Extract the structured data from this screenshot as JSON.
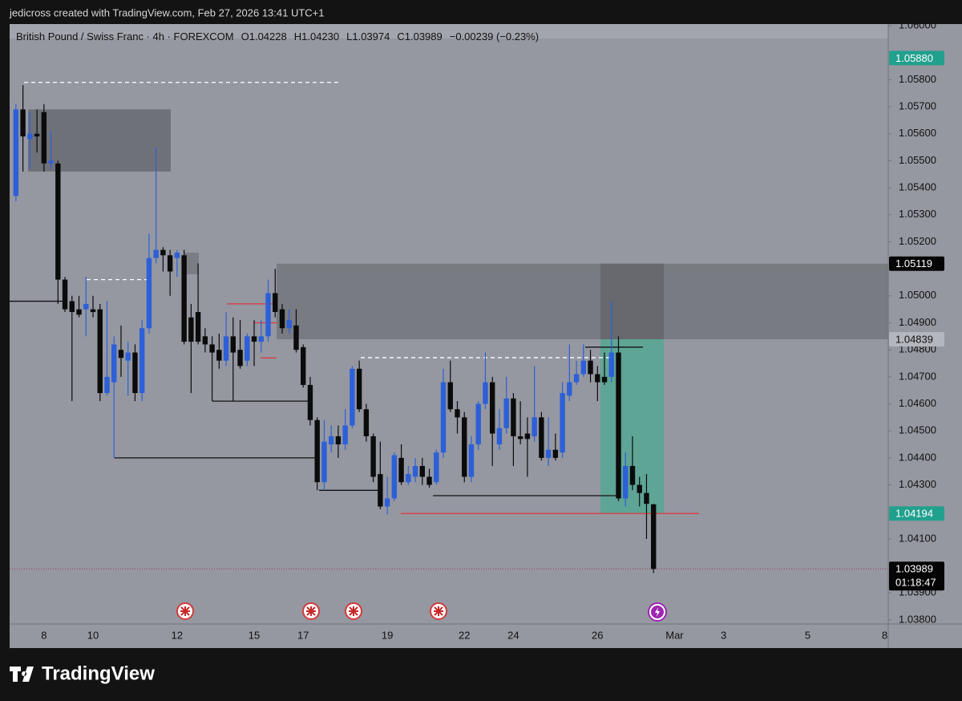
{
  "header": "jedicross created with TradingView.com, Feb 27, 2026 13:41 UTC+1",
  "footer_brand": "TradingView",
  "chart_data": {
    "type": "candlestick",
    "legend": [
      "British Pound / Swiss Franc · 4h · FOREXCOM",
      "O1.04228",
      "H1.04230",
      "L1.03974",
      "C1.03989",
      "−0.00239 (−0.23%)"
    ],
    "categories": [
      null,
      null,
      null,
      null,
      "8",
      null,
      null,
      null,
      null,
      null,
      null,
      "10",
      null,
      null,
      null,
      null,
      null,
      null,
      null,
      null,
      null,
      null,
      null,
      "12",
      null,
      null,
      null,
      null,
      null,
      null,
      null,
      null,
      null,
      null,
      "15",
      null,
      null,
      null,
      null,
      null,
      null,
      "17",
      null,
      null,
      null,
      null,
      null,
      null,
      null,
      null,
      null,
      null,
      null,
      "19",
      null,
      null,
      null,
      null,
      null,
      null,
      null,
      null,
      null,
      null,
      "22",
      null,
      null,
      null,
      null,
      null,
      null,
      "24",
      null,
      null,
      null,
      null,
      null,
      null,
      null,
      null,
      null,
      null,
      null,
      "26",
      null,
      null,
      null,
      null,
      null,
      null,
      null,
      null,
      null,
      null,
      "Mar",
      null,
      null,
      null,
      null,
      null,
      null,
      "3",
      null,
      null,
      null,
      null,
      null,
      null,
      null,
      null,
      null,
      null,
      null,
      "5",
      null,
      null,
      null,
      null,
      null,
      null,
      null,
      null,
      null,
      null,
      "8"
    ],
    "open": [
      1.0537,
      1.0569,
      1.0558,
      1.056,
      1.0568,
      1.0549,
      1.0549,
      1.0506,
      1.0498,
      1.0495,
      1.0495,
      1.0495,
      1.0495,
      1.0464,
      1.0468,
      1.048,
      1.0476,
      1.0479,
      1.0464,
      1.0488,
      1.0514,
      1.0517,
      1.0515,
      1.0514,
      1.0515,
      1.0492,
      1.0494,
      1.0485,
      1.0482,
      1.048,
      1.0476,
      1.0485,
      1.048,
      1.0476,
      1.0485,
      1.0483,
      1.0485,
      1.0501,
      1.0495,
      1.0488,
      1.0489,
      1.0481,
      1.0467,
      1.0454,
      1.0431,
      1.0445,
      1.0448,
      1.0445,
      1.0452,
      1.0473,
      1.0458,
      1.0448,
      1.0434,
      1.0422,
      1.0425,
      1.044,
      1.0431,
      1.0433,
      1.0437,
      1.0433,
      1.0431,
      1.0442,
      1.0468,
      1.0458,
      1.0455,
      1.0433,
      1.0445,
      1.046,
      1.0468,
      1.0445,
      1.0451,
      1.0462,
      1.0448,
      1.0449,
      1.0448,
      1.0455,
      1.044,
      1.0443,
      1.0442,
      1.0463,
      1.0468,
      1.0471,
      1.0476,
      1.0471,
      1.047,
      1.047,
      1.0479,
      1.0425,
      1.0437,
      1.043,
      1.0427,
      1.04228,
      null,
      null,
      null,
      null,
      null,
      null,
      null,
      null,
      null,
      null,
      null,
      null,
      null,
      null,
      null,
      null,
      null,
      null,
      null,
      null,
      null,
      null,
      null,
      null,
      null,
      null,
      null,
      null,
      null,
      null,
      null,
      null,
      null
    ],
    "high": [
      1.0571,
      1.0578,
      1.0568,
      1.0569,
      1.0571,
      1.0561,
      1.055,
      1.0507,
      1.05,
      1.05,
      1.0507,
      1.05,
      1.0497,
      1.0498,
      1.0485,
      1.0489,
      1.0483,
      1.0482,
      1.0491,
      1.0523,
      1.0555,
      1.0518,
      1.0517,
      1.0517,
      1.0517,
      1.0497,
      1.0512,
      1.0488,
      1.0485,
      1.0486,
      1.0494,
      1.0492,
      1.0491,
      1.0486,
      1.0491,
      1.0491,
      1.0506,
      1.051,
      1.0497,
      1.0495,
      1.0495,
      1.0482,
      1.047,
      1.0455,
      1.0454,
      1.0452,
      1.0452,
      1.0458,
      1.0474,
      1.0476,
      1.046,
      1.0449,
      1.0446,
      1.0433,
      1.0442,
      1.0445,
      1.0437,
      1.044,
      1.044,
      1.0436,
      1.0443,
      1.0473,
      1.0476,
      1.0461,
      1.0457,
      1.0448,
      1.0461,
      1.0479,
      1.047,
      1.0458,
      1.047,
      1.0464,
      1.0461,
      1.0455,
      1.0474,
      1.0457,
      1.0455,
      1.0449,
      1.0468,
      1.0482,
      1.0476,
      1.0482,
      1.048,
      1.0474,
      1.0479,
      1.0498,
      1.0485,
      1.0442,
      1.0448,
      1.0433,
      1.0434,
      1.0423,
      null,
      null,
      null,
      null,
      null,
      null,
      null,
      null,
      null,
      null,
      null,
      null,
      null,
      null,
      null,
      null,
      null,
      null,
      null,
      null,
      null,
      null,
      null,
      null,
      null,
      null,
      null,
      null,
      null,
      null,
      null,
      null,
      null
    ],
    "low": [
      1.0535,
      1.0546,
      1.0547,
      1.0553,
      1.0546,
      1.0547,
      1.0497,
      1.0494,
      1.0461,
      1.0492,
      1.0485,
      1.0492,
      1.0461,
      1.0463,
      1.044,
      1.047,
      1.0463,
      1.0461,
      1.0461,
      1.0486,
      1.0512,
      1.0509,
      1.05,
      1.0507,
      1.0482,
      1.0464,
      1.0482,
      1.0479,
      1.0461,
      1.0473,
      1.0474,
      1.0461,
      1.0473,
      1.0474,
      1.0474,
      1.0479,
      1.0483,
      1.0492,
      1.0486,
      1.0486,
      1.0479,
      1.0466,
      1.0452,
      1.0428,
      1.0428,
      1.0442,
      1.044,
      1.0443,
      1.0451,
      1.0457,
      1.0446,
      1.0431,
      1.0421,
      1.0419,
      1.0424,
      1.043,
      1.043,
      1.0431,
      1.043,
      1.0429,
      1.043,
      1.044,
      1.0457,
      1.0449,
      1.0431,
      1.0431,
      1.0443,
      1.0458,
      1.0437,
      1.0443,
      1.0449,
      1.0437,
      1.0445,
      1.0433,
      1.0446,
      1.0439,
      1.0437,
      1.0439,
      1.044,
      1.0461,
      1.0467,
      1.047,
      1.0468,
      1.0461,
      1.0467,
      1.0468,
      1.0424,
      1.0422,
      1.0428,
      1.0422,
      1.041,
      1.03974,
      null,
      null,
      null,
      null,
      null,
      null,
      null,
      null,
      null,
      null,
      null,
      null,
      null,
      null,
      null,
      null,
      null,
      null,
      null,
      null,
      null,
      null,
      null,
      null,
      null,
      null,
      null,
      null,
      null,
      null,
      null,
      null,
      null
    ],
    "close": [
      1.0569,
      1.0559,
      1.056,
      1.0559,
      1.0549,
      1.055,
      1.0506,
      1.0495,
      1.0494,
      1.0493,
      1.0497,
      1.0494,
      1.0464,
      1.047,
      1.0482,
      1.0477,
      1.0479,
      1.0464,
      1.0488,
      1.0514,
      1.0517,
      1.0515,
      1.0509,
      1.0516,
      1.0483,
      1.0483,
      1.0483,
      1.0482,
      1.0479,
      1.0476,
      1.0485,
      1.0479,
      1.0474,
      1.0485,
      1.0483,
      1.0485,
      1.0501,
      1.0494,
      1.0488,
      1.0491,
      1.048,
      1.0467,
      1.0454,
      1.0431,
      1.0446,
      1.0448,
      1.0445,
      1.0452,
      1.0473,
      1.0458,
      1.0448,
      1.0433,
      1.0422,
      1.0425,
      1.0441,
      1.0431,
      1.0434,
      1.0437,
      1.0433,
      1.043,
      1.0442,
      1.0468,
      1.0458,
      1.0455,
      1.0433,
      1.0445,
      1.046,
      1.0468,
      1.0449,
      1.0451,
      1.0462,
      1.0448,
      1.0447,
      1.0447,
      1.0455,
      1.044,
      1.0443,
      1.044,
      1.0464,
      1.0468,
      1.0471,
      1.0476,
      1.0471,
      1.0468,
      1.0468,
      1.0479,
      1.0425,
      1.0437,
      1.043,
      1.0427,
      1.0423,
      1.03989,
      null,
      null,
      null,
      null,
      null,
      null,
      null,
      null,
      null,
      null,
      null,
      null,
      null,
      null,
      null,
      null,
      null,
      null,
      null,
      null,
      null,
      null,
      null,
      null,
      null,
      null,
      null,
      null,
      null,
      null,
      null,
      null,
      null
    ],
    "up_color": "#2d5fd8",
    "down_color": "#0b0b0b",
    "ylim": [
      1.03785,
      1.06006
    ],
    "yticks": [
      {
        "value": 1.038,
        "label": "1.03800"
      },
      {
        "value": 1.039,
        "label": "1.03900"
      },
      {
        "value": 1.041,
        "label": "1.04100"
      },
      {
        "value": 1.043,
        "label": "1.04300"
      },
      {
        "value": 1.044,
        "label": "1.04400"
      },
      {
        "value": 1.045,
        "label": "1.04500"
      },
      {
        "value": 1.046,
        "label": "1.04600"
      },
      {
        "value": 1.047,
        "label": "1.04700"
      },
      {
        "value": 1.048,
        "label": "1.04800"
      },
      {
        "value": 1.049,
        "label": "1.04900"
      },
      {
        "value": 1.05,
        "label": "1.05000"
      },
      {
        "value": 1.052,
        "label": "1.05200"
      },
      {
        "value": 1.053,
        "label": "1.05300"
      },
      {
        "value": 1.054,
        "label": "1.05400"
      },
      {
        "value": 1.055,
        "label": "1.05500"
      },
      {
        "value": 1.056,
        "label": "1.05600"
      },
      {
        "value": 1.057,
        "label": "1.05700"
      },
      {
        "value": 1.058,
        "label": "1.05800"
      },
      {
        "value": 1.06,
        "label": "1.06000"
      }
    ],
    "grid": false,
    "last_price_color": "#a0305f",
    "price_tags": [
      {
        "value": 1.0588,
        "label": "1.05880",
        "color": "#22a08e",
        "text_color": "#ffffff"
      },
      {
        "value": 1.05119,
        "label": "1.05119",
        "color": "#050505",
        "text_color": "#ffffff"
      },
      {
        "value": 1.04839,
        "label": "1.04839",
        "color": "#b4b7be",
        "text_color": "#111111"
      },
      {
        "value": 1.04194,
        "label": "1.04194",
        "color": "#22a08e",
        "text_color": "#ffffff"
      },
      {
        "value": 1.03989,
        "label": "1.03989",
        "color": "#050505",
        "text_color": "#ffffff",
        "countdown": "01:18:47"
      }
    ],
    "zones": [
      {
        "top": 1.0569,
        "bottom": 1.0546,
        "color": "#6f7178"
      },
      {
        "top": 1.05119,
        "bottom": 1.04839,
        "color": "#797b82"
      },
      {
        "top": 1.0516,
        "bottom": 1.0508,
        "color": "#7b7d84"
      },
      {
        "top": 1.05119,
        "bottom": 1.04839,
        "color": "#67696f"
      },
      {
        "top": 1.04839,
        "bottom": 1.04194,
        "color": "#5ea596"
      }
    ],
    "lines": [
      {
        "price": 1.0579,
        "color": "#ffffff",
        "dash": true
      },
      {
        "price": 1.0506,
        "color": "#ffffff",
        "dash": true
      },
      {
        "price": 1.04771,
        "color": "#ffffff",
        "dash": true
      },
      {
        "price": 1.0498,
        "color": "#111111",
        "dash": false
      },
      {
        "price": 1.044,
        "color": "#111111",
        "dash": false
      },
      {
        "price": 1.0461,
        "color": "#111111",
        "dash": false
      },
      {
        "price": 1.0428,
        "color": "#111111",
        "dash": false
      },
      {
        "price": 1.0426,
        "color": "#111111",
        "dash": false
      },
      {
        "price": 1.0481,
        "color": "#111111",
        "dash": false
      },
      {
        "price": 1.04194,
        "color": "#e0353a",
        "dash": false
      },
      {
        "price": 1.0497,
        "color": "#e0353a",
        "dash": false
      },
      {
        "price": 1.049,
        "color": "#e0353a",
        "dash": false
      },
      {
        "price": 1.0477,
        "color": "#e0353a",
        "dash": false
      }
    ]
  }
}
